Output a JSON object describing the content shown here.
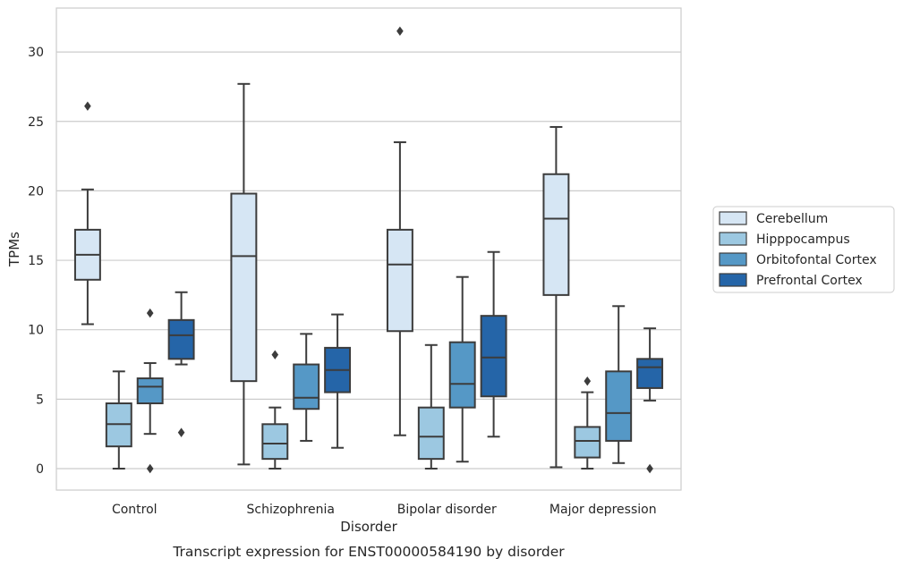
{
  "chart_data": {
    "type": "box",
    "title": "",
    "caption": "Transcript expression for ENST00000584190 by disorder",
    "xlabel": "Disorder",
    "ylabel": "TPMs",
    "ylim": [
      -1.5,
      32.8
    ],
    "yticks": [
      0,
      5,
      10,
      15,
      20,
      25,
      30
    ],
    "grid": "horizontal",
    "legend_position": "right",
    "categories": [
      "Control",
      "Schizophrenia",
      "Bipolar disorder",
      "Major depression"
    ],
    "series": [
      {
        "name": "Cerebellum",
        "color": "#d6e6f4",
        "boxes": [
          {
            "whisker_low": 10.4,
            "q1": 13.6,
            "median": 15.4,
            "q3": 17.2,
            "whisker_high": 20.1,
            "outliers": [
              26.1
            ]
          },
          {
            "whisker_low": 0.3,
            "q1": 6.3,
            "median": 15.3,
            "q3": 19.8,
            "whisker_high": 27.7,
            "outliers": []
          },
          {
            "whisker_low": 2.4,
            "q1": 9.9,
            "median": 14.7,
            "q3": 17.2,
            "whisker_high": 23.5,
            "outliers": [
              31.5
            ]
          },
          {
            "whisker_low": 0.1,
            "q1": 12.5,
            "median": 18.0,
            "q3": 21.2,
            "whisker_high": 24.6,
            "outliers": []
          }
        ]
      },
      {
        "name": "Hipppocampus",
        "color": "#9cc8e1",
        "boxes": [
          {
            "whisker_low": 0.0,
            "q1": 1.6,
            "median": 3.2,
            "q3": 4.7,
            "whisker_high": 7.0,
            "outliers": []
          },
          {
            "whisker_low": 0.0,
            "q1": 0.7,
            "median": 1.8,
            "q3": 3.2,
            "whisker_high": 4.4,
            "outliers": [
              8.2
            ]
          },
          {
            "whisker_low": 0.0,
            "q1": 0.7,
            "median": 2.3,
            "q3": 4.4,
            "whisker_high": 8.9,
            "outliers": []
          },
          {
            "whisker_low": 0.0,
            "q1": 0.8,
            "median": 2.0,
            "q3": 3.0,
            "whisker_high": 5.5,
            "outliers": [
              6.3
            ]
          }
        ]
      },
      {
        "name": "Orbitofontal Cortex",
        "color": "#5598c6",
        "boxes": [
          {
            "whisker_low": 2.5,
            "q1": 4.7,
            "median": 5.9,
            "q3": 6.5,
            "whisker_high": 7.6,
            "outliers": [
              11.2,
              0.0
            ]
          },
          {
            "whisker_low": 2.0,
            "q1": 4.3,
            "median": 5.1,
            "q3": 7.5,
            "whisker_high": 9.7,
            "outliers": []
          },
          {
            "whisker_low": 0.5,
            "q1": 4.4,
            "median": 6.1,
            "q3": 9.1,
            "whisker_high": 13.8,
            "outliers": []
          },
          {
            "whisker_low": 0.4,
            "q1": 2.0,
            "median": 4.0,
            "q3": 7.0,
            "whisker_high": 11.7,
            "outliers": []
          }
        ]
      },
      {
        "name": "Prefrontal Cortex",
        "color": "#2565a8",
        "boxes": [
          {
            "whisker_low": 7.5,
            "q1": 7.9,
            "median": 9.6,
            "q3": 10.7,
            "whisker_high": 12.7,
            "outliers": [
              2.6
            ]
          },
          {
            "whisker_low": 1.5,
            "q1": 5.5,
            "median": 7.1,
            "q3": 8.7,
            "whisker_high": 11.1,
            "outliers": []
          },
          {
            "whisker_low": 2.3,
            "q1": 5.2,
            "median": 8.0,
            "q3": 11.0,
            "whisker_high": 15.6,
            "outliers": []
          },
          {
            "whisker_low": 4.9,
            "q1": 5.8,
            "median": 7.3,
            "q3": 7.9,
            "whisker_high": 10.1,
            "outliers": [
              0.0
            ]
          }
        ]
      }
    ]
  }
}
